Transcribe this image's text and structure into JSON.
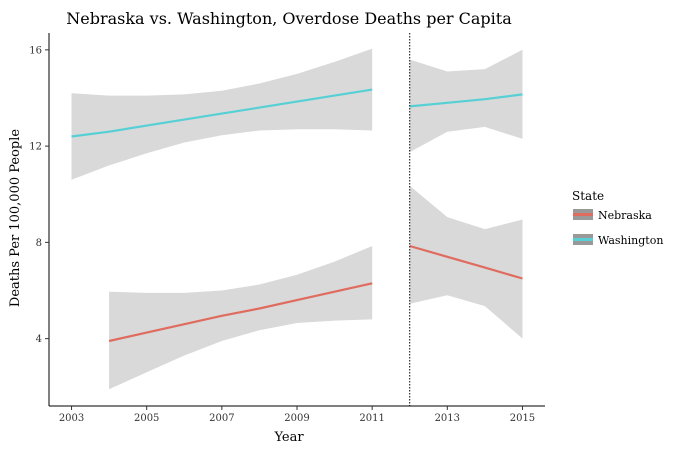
{
  "chart_data": {
    "type": "line",
    "title": "Nebraska vs. Washington, Overdose Deaths per Capita",
    "xlabel": "Year",
    "ylabel": "Deaths Per 100,000 People",
    "xlim": [
      2002.4,
      2015.6
    ],
    "ylim": [
      1.2,
      16.7
    ],
    "x_ticks": [
      2003,
      2005,
      2007,
      2009,
      2011,
      2013,
      2015
    ],
    "y_ticks": [
      4,
      8,
      12,
      16
    ],
    "vline": {
      "x": 2012,
      "style": "dotted"
    },
    "grid": false,
    "legend": {
      "title": "State",
      "placement": "right",
      "entries": [
        {
          "name": "Nebraska",
          "color": "#e06b5f"
        },
        {
          "name": "Washington",
          "color": "#56d0d5"
        }
      ]
    },
    "series": [
      {
        "name": "Washington",
        "color": "#56d0d5",
        "segments": [
          {
            "x": [
              2003,
              2004,
              2005,
              2006,
              2007,
              2008,
              2009,
              2010,
              2011
            ],
            "y": [
              12.4,
              12.6,
              12.85,
              13.1,
              13.35,
              13.6,
              13.85,
              14.1,
              14.35
            ],
            "lower": [
              10.6,
              11.2,
              11.7,
              12.15,
              12.45,
              12.65,
              12.7,
              12.7,
              12.65
            ],
            "upper": [
              14.2,
              14.1,
              14.1,
              14.15,
              14.3,
              14.6,
              15.0,
              15.5,
              16.05
            ]
          },
          {
            "x": [
              2012,
              2013,
              2014,
              2015
            ],
            "y": [
              13.65,
              13.8,
              13.95,
              14.15
            ],
            "lower": [
              11.75,
              12.6,
              12.8,
              12.3
            ],
            "upper": [
              15.6,
              15.1,
              15.2,
              16.0
            ]
          }
        ]
      },
      {
        "name": "Nebraska",
        "color": "#e06b5f",
        "segments": [
          {
            "x": [
              2004,
              2005,
              2006,
              2007,
              2008,
              2009,
              2010,
              2011
            ],
            "y": [
              3.9,
              4.25,
              4.6,
              4.95,
              5.25,
              5.6,
              5.95,
              6.3
            ],
            "lower": [
              1.9,
              2.6,
              3.3,
              3.9,
              4.35,
              4.65,
              4.75,
              4.8
            ],
            "upper": [
              5.95,
              5.9,
              5.9,
              6.0,
              6.25,
              6.65,
              7.2,
              7.85
            ]
          },
          {
            "x": [
              2012,
              2013,
              2014,
              2015
            ],
            "y": [
              7.85,
              7.4,
              6.95,
              6.5
            ],
            "lower": [
              5.45,
              5.8,
              5.35,
              4.0
            ],
            "upper": [
              10.35,
              9.05,
              8.55,
              8.95
            ]
          }
        ]
      }
    ]
  }
}
